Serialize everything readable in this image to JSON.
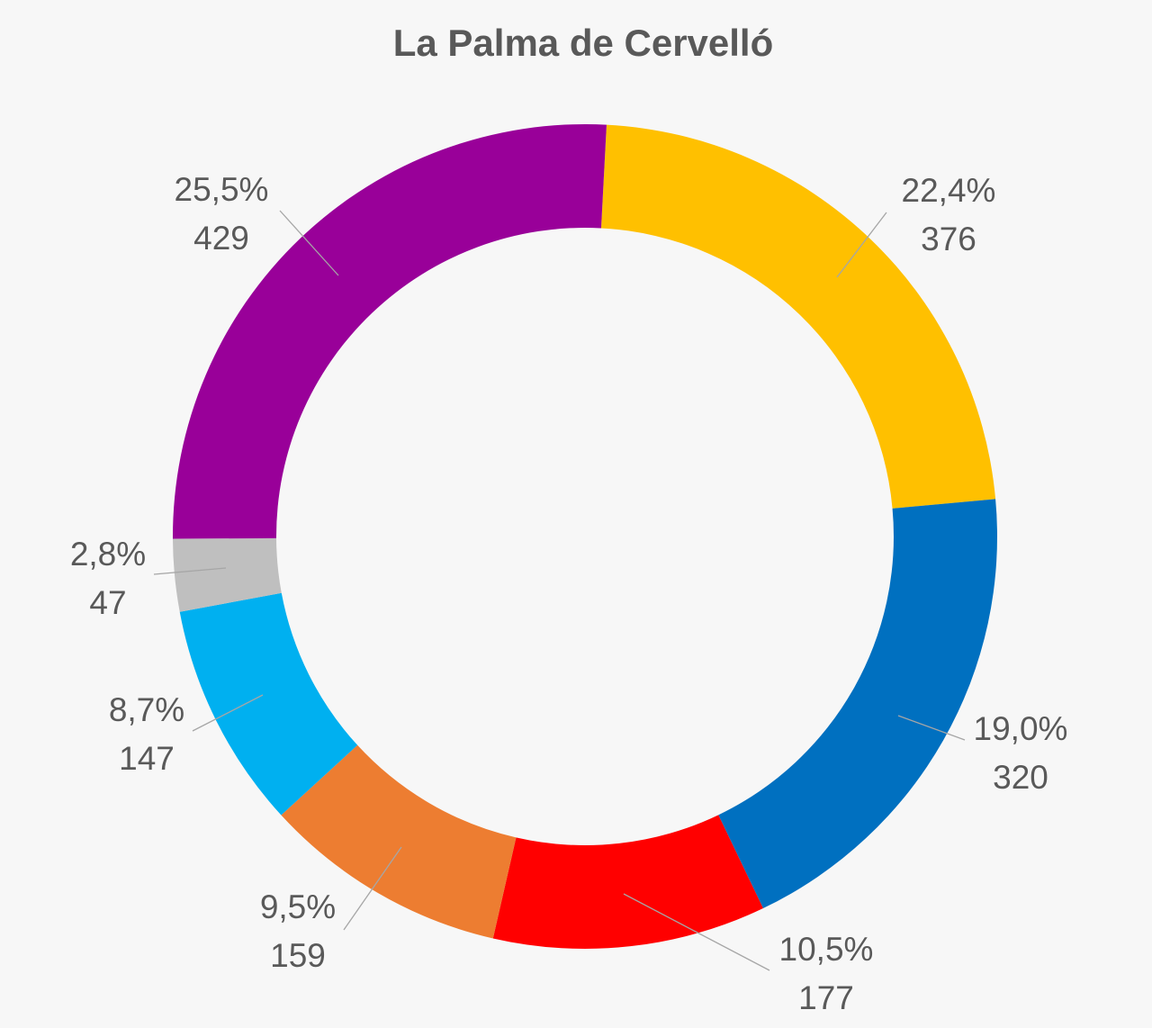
{
  "chart_data": {
    "type": "pie",
    "variant": "doughnut",
    "title": "La Palma de Cervelló",
    "slices": [
      {
        "percent_label": "22,4%",
        "value": 376,
        "value_label": "376",
        "color": "#FFC000"
      },
      {
        "percent_label": "19,0%",
        "value": 320,
        "value_label": "320",
        "color": "#0070C0"
      },
      {
        "percent_label": "10,5%",
        "value": 177,
        "value_label": "177",
        "color": "#FF0000"
      },
      {
        "percent_label": "9,5%",
        "value": 159,
        "value_label": "159",
        "color": "#ED7D31"
      },
      {
        "percent_label": "8,7%",
        "value": 147,
        "value_label": "147",
        "color": "#00B0F0"
      },
      {
        "percent_label": "2,8%",
        "value": 47,
        "value_label": "47",
        "color": "#BFBFBF"
      },
      {
        "percent_label": "25,5%",
        "value": 429,
        "value_label": "429",
        "color": "#990099"
      }
    ]
  }
}
